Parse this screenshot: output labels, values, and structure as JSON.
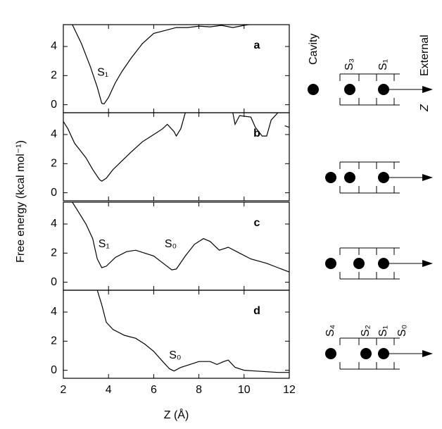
{
  "chart_data": [
    {
      "type": "line",
      "panel": "a",
      "ylabel": "Free energy (kcal mol⁻¹)",
      "annotations": [
        "S₁"
      ],
      "xlim": [
        2,
        12
      ],
      "ylim": [
        -0.55,
        5.5
      ],
      "yticks": [
        0,
        2,
        4
      ],
      "x": [
        2.4,
        2.8,
        3.2,
        3.5,
        3.7,
        3.8,
        4.0,
        4.3,
        4.6,
        5.0,
        5.5,
        6.0,
        6.5,
        7.0,
        7.5,
        8.0,
        8.5,
        9.0,
        9.5,
        10.0,
        10.2
      ],
      "values": [
        5.5,
        4.2,
        2.6,
        1.2,
        0.1,
        0.05,
        0.5,
        1.5,
        2.3,
        3.2,
        4.2,
        4.9,
        5.1,
        5.3,
        5.3,
        5.4,
        5.35,
        5.45,
        5.3,
        5.45,
        5.5
      ],
      "color": "#000000"
    },
    {
      "type": "line",
      "panel": "b",
      "xlim": [
        2,
        12
      ],
      "ylim": [
        -0.55,
        5.5
      ],
      "yticks": [
        0,
        2,
        4
      ],
      "x": [
        2.0,
        2.2,
        2.5,
        2.8,
        3.0,
        3.3,
        3.6,
        3.7,
        3.9,
        4.2,
        4.6,
        5.0,
        5.5,
        6.0,
        6.4,
        6.6,
        6.9,
        7.0,
        7.2,
        7.4,
        8.5,
        9.5,
        9.6,
        9.8,
        10.3,
        10.5,
        10.8,
        11.0,
        11.2,
        11.5,
        11.7,
        11.8,
        12.0
      ],
      "values": [
        4.9,
        4.4,
        3.4,
        2.8,
        2.4,
        1.6,
        0.9,
        0.8,
        1.0,
        1.6,
        2.2,
        2.8,
        3.5,
        4.0,
        4.4,
        4.7,
        4.2,
        3.9,
        4.4,
        5.5,
        null,
        5.5,
        4.7,
        5.3,
        5.2,
        4.5,
        3.9,
        3.9,
        5.0,
        5.5,
        null,
        4.6,
        4.5
      ],
      "color": "#000000"
    },
    {
      "type": "line",
      "panel": "c",
      "annotations": [
        "S₁",
        "S₀"
      ],
      "xlim": [
        2,
        12
      ],
      "ylim": [
        -0.55,
        5.5
      ],
      "yticks": [
        0,
        2,
        4
      ],
      "x": [
        2.4,
        2.6,
        3.0,
        3.3,
        3.5,
        3.7,
        3.9,
        4.3,
        4.8,
        5.2,
        5.6,
        6.0,
        6.5,
        6.8,
        7.0,
        7.4,
        7.8,
        8.2,
        8.5,
        8.9,
        9.3,
        9.8,
        10.3,
        11.0,
        11.5,
        12.0
      ],
      "values": [
        5.5,
        5.0,
        4.0,
        3.0,
        1.6,
        1.0,
        1.1,
        1.7,
        2.1,
        2.2,
        2.0,
        1.8,
        1.2,
        0.85,
        0.9,
        1.8,
        2.6,
        3.0,
        2.8,
        2.2,
        2.4,
        2.0,
        1.6,
        1.3,
        1.0,
        0.7
      ],
      "color": "#000000"
    },
    {
      "type": "line",
      "panel": "d",
      "annotations": [
        "S₀"
      ],
      "xlabel": "Z (Å)",
      "xlim": [
        2,
        12
      ],
      "ylim": [
        -0.55,
        5.5
      ],
      "yticks": [
        0,
        2,
        4
      ],
      "xticks": [
        2,
        4,
        6,
        8,
        10,
        12
      ],
      "x": [
        3.5,
        3.7,
        3.9,
        4.2,
        4.7,
        5.2,
        5.6,
        6.0,
        6.4,
        6.7,
        6.9,
        7.2,
        7.6,
        8.0,
        8.5,
        8.8,
        9.1,
        9.3,
        9.6,
        10.0,
        10.5,
        11.0,
        11.5,
        12.0
      ],
      "values": [
        5.5,
        4.5,
        3.3,
        2.8,
        2.4,
        2.2,
        1.8,
        1.3,
        0.6,
        0.1,
        -0.05,
        0.2,
        0.4,
        0.6,
        0.6,
        0.4,
        0.6,
        0.7,
        0.2,
        0.0,
        -0.05,
        -0.1,
        -0.15,
        -0.15
      ],
      "color": "#000000"
    }
  ],
  "schematic_a": {
    "labels": [
      "Cavity",
      "S₃",
      "S₁",
      "External",
      "Z"
    ]
  },
  "schematic_d": {
    "labels": [
      "S₄",
      "S₂",
      "S₁",
      "S₀"
    ]
  }
}
